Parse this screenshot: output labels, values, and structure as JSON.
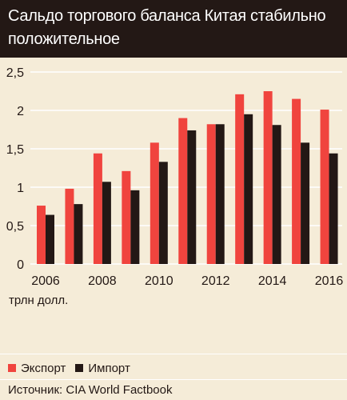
{
  "header": {
    "title_line1": "Сальдо торгового баланса Китая стабильно",
    "title_line2": "положительное"
  },
  "unit_label": "трлн долл.",
  "source": "Источник: CIA World Factbook",
  "colors": {
    "export": "#f0443e",
    "import": "#231815",
    "background": "#f5ecd8",
    "header": "#231815"
  },
  "chart_data": {
    "type": "bar",
    "categories": [
      "2006",
      "2007",
      "2008",
      "2009",
      "2010",
      "2011",
      "2012",
      "2013",
      "2014",
      "2015",
      "2016"
    ],
    "x_tick_labels": [
      "2006",
      "2008",
      "2010",
      "2012",
      "2014",
      "2016"
    ],
    "series": [
      {
        "name": "Экспорт",
        "color": "#f0443e",
        "values": [
          0.76,
          0.98,
          1.44,
          1.21,
          1.58,
          1.9,
          1.82,
          2.21,
          2.25,
          2.15,
          2.01
        ]
      },
      {
        "name": "Импорт",
        "color": "#231815",
        "values": [
          0.64,
          0.78,
          1.07,
          0.96,
          1.33,
          1.74,
          1.82,
          1.95,
          1.81,
          1.58,
          1.44
        ]
      }
    ],
    "y_ticks": [
      "0",
      "0,5",
      "1",
      "1,5",
      "2",
      "2,5"
    ],
    "ylim": [
      0,
      2.5
    ],
    "grid": "horizontal",
    "legend": "bottom-left"
  }
}
